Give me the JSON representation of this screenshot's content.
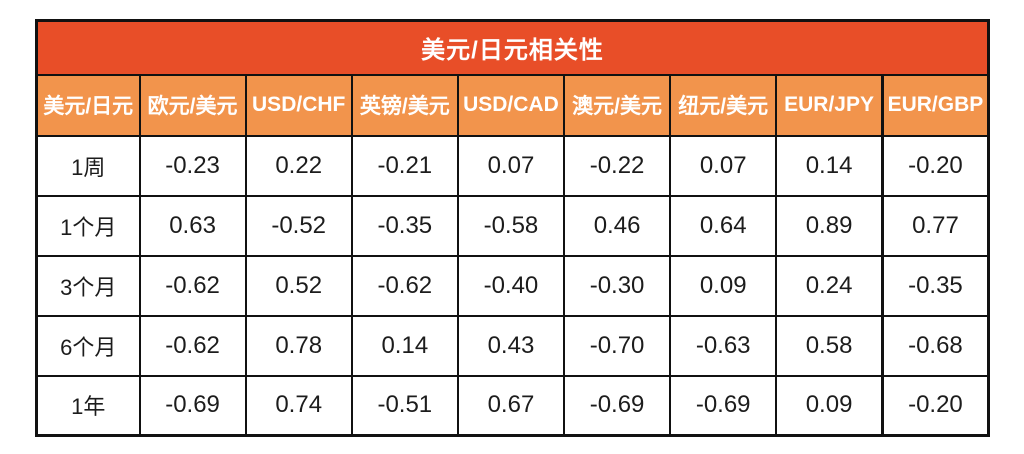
{
  "colors": {
    "title_bg": "#E84E28",
    "header_bg": "#F2944C",
    "border": "#111111",
    "header_text": "#FFFFFF",
    "body_text": "#1C1C1C"
  },
  "chart_data": {
    "type": "table",
    "title": "美元/日元相关性",
    "corner_header": "美元/日元",
    "columns": [
      "欧元/美元",
      "USD/CHF",
      "英镑/美元",
      "USD/CAD",
      "澳元/美元",
      "纽元/美元",
      "EUR/JPY",
      "EUR/GBP"
    ],
    "rows": [
      {
        "label": "1周",
        "values": [
          "-0.23",
          "0.22",
          "-0.21",
          "0.07",
          "-0.22",
          "0.07",
          "0.14",
          "-0.20"
        ]
      },
      {
        "label": "1个月",
        "values": [
          "0.63",
          "-0.52",
          "-0.35",
          "-0.58",
          "0.46",
          "0.64",
          "0.89",
          "0.77"
        ]
      },
      {
        "label": "3个月",
        "values": [
          "-0.62",
          "0.52",
          "-0.62",
          "-0.40",
          "-0.30",
          "0.09",
          "0.24",
          "-0.35"
        ]
      },
      {
        "label": "6个月",
        "values": [
          "-0.62",
          "0.78",
          "0.14",
          "0.43",
          "-0.70",
          "-0.63",
          "0.58",
          "-0.68"
        ]
      },
      {
        "label": "1年",
        "values": [
          "-0.69",
          "0.74",
          "-0.51",
          "0.67",
          "-0.69",
          "-0.69",
          "0.09",
          "-0.20"
        ]
      }
    ]
  }
}
